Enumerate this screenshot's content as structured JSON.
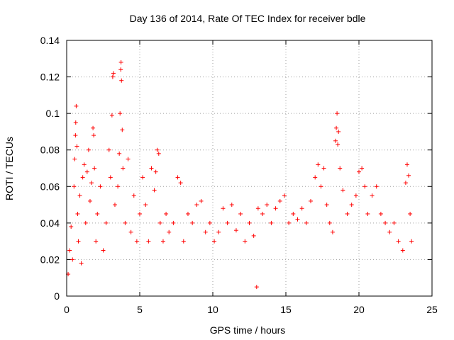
{
  "chart_data": {
    "type": "scatter",
    "title": "Day 136 of 2014, Rate Of TEC Index for receiver bdle",
    "xlabel": "GPS time / hours",
    "ylabel": "ROTI / TECUs",
    "xlim": [
      0,
      25
    ],
    "ylim": [
      0,
      0.14
    ],
    "x_ticks": [
      0,
      5,
      10,
      15,
      20,
      25
    ],
    "y_ticks": [
      0,
      0.02,
      0.04,
      0.06,
      0.08,
      0.1,
      0.12,
      0.14
    ],
    "x_tick_labels": [
      "0",
      "5",
      "10",
      "15",
      "20",
      "25"
    ],
    "y_tick_labels": [
      "0",
      "0.02",
      "0.04",
      "0.06",
      "0.08",
      "0.1",
      "0.12",
      "0.14"
    ],
    "grid": true,
    "marker": "+",
    "color": "#ff0000",
    "series": [
      {
        "name": "ROTI",
        "points": [
          [
            0.1,
            0.012
          ],
          [
            0.2,
            0.025
          ],
          [
            0.3,
            0.038
          ],
          [
            0.4,
            0.02
          ],
          [
            0.5,
            0.06
          ],
          [
            0.55,
            0.075
          ],
          [
            0.6,
            0.088
          ],
          [
            0.62,
            0.095
          ],
          [
            0.65,
            0.104
          ],
          [
            0.7,
            0.082
          ],
          [
            0.75,
            0.045
          ],
          [
            0.8,
            0.03
          ],
          [
            0.9,
            0.055
          ],
          [
            1.0,
            0.018
          ],
          [
            1.1,
            0.065
          ],
          [
            1.2,
            0.072
          ],
          [
            1.3,
            0.04
          ],
          [
            1.4,
            0.068
          ],
          [
            1.5,
            0.08
          ],
          [
            1.6,
            0.052
          ],
          [
            1.7,
            0.062
          ],
          [
            1.8,
            0.092
          ],
          [
            1.85,
            0.088
          ],
          [
            1.9,
            0.07
          ],
          [
            2.0,
            0.03
          ],
          [
            2.1,
            0.045
          ],
          [
            2.3,
            0.06
          ],
          [
            2.5,
            0.025
          ],
          [
            2.7,
            0.04
          ],
          [
            2.9,
            0.08
          ],
          [
            3.0,
            0.065
          ],
          [
            3.1,
            0.099
          ],
          [
            3.15,
            0.12
          ],
          [
            3.2,
            0.122
          ],
          [
            3.3,
            0.05
          ],
          [
            3.5,
            0.06
          ],
          [
            3.6,
            0.078
          ],
          [
            3.65,
            0.1
          ],
          [
            3.7,
            0.124
          ],
          [
            3.72,
            0.128
          ],
          [
            3.75,
            0.118
          ],
          [
            3.8,
            0.091
          ],
          [
            3.85,
            0.07
          ],
          [
            4.0,
            0.04
          ],
          [
            4.2,
            0.075
          ],
          [
            4.4,
            0.035
          ],
          [
            4.6,
            0.055
          ],
          [
            4.8,
            0.03
          ],
          [
            5.0,
            0.045
          ],
          [
            5.2,
            0.065
          ],
          [
            5.4,
            0.05
          ],
          [
            5.6,
            0.03
          ],
          [
            5.8,
            0.07
          ],
          [
            6.0,
            0.058
          ],
          [
            6.1,
            0.068
          ],
          [
            6.2,
            0.08
          ],
          [
            6.3,
            0.078
          ],
          [
            6.4,
            0.04
          ],
          [
            6.6,
            0.03
          ],
          [
            6.8,
            0.045
          ],
          [
            7.0,
            0.035
          ],
          [
            7.3,
            0.04
          ],
          [
            7.6,
            0.065
          ],
          [
            7.8,
            0.062
          ],
          [
            8.0,
            0.03
          ],
          [
            8.3,
            0.045
          ],
          [
            8.6,
            0.04
          ],
          [
            8.9,
            0.05
          ],
          [
            9.2,
            0.052
          ],
          [
            9.5,
            0.035
          ],
          [
            9.8,
            0.04
          ],
          [
            10.1,
            0.03
          ],
          [
            10.4,
            0.035
          ],
          [
            10.7,
            0.048
          ],
          [
            11.0,
            0.04
          ],
          [
            11.3,
            0.05
          ],
          [
            11.6,
            0.036
          ],
          [
            11.9,
            0.045
          ],
          [
            12.2,
            0.03
          ],
          [
            12.5,
            0.04
          ],
          [
            12.8,
            0.033
          ],
          [
            13.0,
            0.005
          ],
          [
            13.1,
            0.048
          ],
          [
            13.4,
            0.045
          ],
          [
            13.7,
            0.05
          ],
          [
            14.0,
            0.04
          ],
          [
            14.3,
            0.048
          ],
          [
            14.6,
            0.052
          ],
          [
            14.9,
            0.055
          ],
          [
            15.2,
            0.04
          ],
          [
            15.5,
            0.045
          ],
          [
            15.8,
            0.042
          ],
          [
            16.1,
            0.048
          ],
          [
            16.4,
            0.04
          ],
          [
            16.7,
            0.052
          ],
          [
            17.0,
            0.065
          ],
          [
            17.2,
            0.072
          ],
          [
            17.4,
            0.06
          ],
          [
            17.6,
            0.07
          ],
          [
            17.8,
            0.05
          ],
          [
            18.0,
            0.04
          ],
          [
            18.2,
            0.035
          ],
          [
            18.4,
            0.085
          ],
          [
            18.45,
            0.092
          ],
          [
            18.5,
            0.1
          ],
          [
            18.55,
            0.083
          ],
          [
            18.6,
            0.09
          ],
          [
            18.7,
            0.07
          ],
          [
            18.9,
            0.058
          ],
          [
            19.2,
            0.045
          ],
          [
            19.5,
            0.05
          ],
          [
            19.8,
            0.055
          ],
          [
            20.0,
            0.068
          ],
          [
            20.2,
            0.07
          ],
          [
            20.4,
            0.06
          ],
          [
            20.6,
            0.045
          ],
          [
            20.9,
            0.055
          ],
          [
            21.2,
            0.06
          ],
          [
            21.5,
            0.045
          ],
          [
            21.8,
            0.04
          ],
          [
            22.1,
            0.035
          ],
          [
            22.4,
            0.04
          ],
          [
            22.7,
            0.03
          ],
          [
            23.0,
            0.025
          ],
          [
            23.2,
            0.062
          ],
          [
            23.3,
            0.072
          ],
          [
            23.4,
            0.066
          ],
          [
            23.5,
            0.045
          ],
          [
            23.6,
            0.03
          ]
        ]
      }
    ]
  }
}
